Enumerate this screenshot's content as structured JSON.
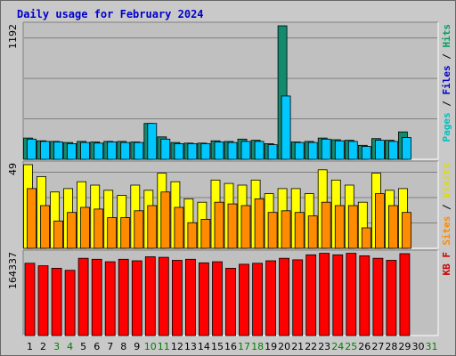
{
  "chart_data": {
    "type": "bar",
    "title": "Daily usage for February 2024",
    "categories": [
      "1",
      "2",
      "3",
      "4",
      "5",
      "6",
      "7",
      "8",
      "9",
      "10",
      "11",
      "12",
      "13",
      "14",
      "15",
      "16",
      "17",
      "18",
      "19",
      "20",
      "21",
      "22",
      "23",
      "24",
      "25",
      "26",
      "27",
      "28",
      "29",
      "30",
      "31"
    ],
    "weekend_days": [
      "3",
      "4",
      "10",
      "11",
      "17",
      "18",
      "24",
      "25",
      "31"
    ],
    "panels": [
      {
        "id": "pages_files_hits",
        "max_label": "1192",
        "ylim": [
          0,
          1192
        ],
        "legend": [
          {
            "label": "Pages",
            "color": "#00c0c0"
          },
          {
            "label": "Files",
            "color": "#0000cc"
          },
          {
            "label": "Hits",
            "color": "#00a060"
          }
        ],
        "series": [
          {
            "name": "Hits",
            "color": "#128a6e",
            "values": [
              190,
              165,
              160,
              150,
              160,
              155,
              160,
              160,
              155,
              320,
              200,
              150,
              145,
              145,
              165,
              160,
              180,
              170,
              140,
              1192,
              155,
              160,
              190,
              175,
              170,
              125,
              185,
              170,
              245,
              null,
              null
            ]
          },
          {
            "name": "Pages",
            "color": "#00c8ff",
            "values": [
              180,
              160,
              155,
              140,
              150,
              145,
              155,
              150,
              150,
              320,
              180,
              140,
              140,
              140,
              155,
              150,
              160,
              160,
              130,
              565,
              150,
              150,
              180,
              165,
              160,
              115,
              170,
              160,
              195,
              null,
              null
            ]
          }
        ]
      },
      {
        "id": "visits_sites",
        "max_label": "49",
        "ylim": [
          0,
          49
        ],
        "legend": [
          {
            "label": "Sites",
            "color": "#ff8800"
          },
          {
            "label": "Visits",
            "color": "#dddd00"
          }
        ],
        "series": [
          {
            "name": "Visits",
            "color": "#ffff00",
            "values": [
              49,
              42,
              33,
              35,
              39,
              37,
              34,
              31,
              37,
              34,
              44,
              39,
              29,
              27,
              40,
              38,
              37,
              40,
              32,
              35,
              35,
              32,
              46,
              40,
              37,
              27,
              44,
              34,
              35,
              null,
              null
            ]
          },
          {
            "name": "Sites",
            "color": "#ff8c00",
            "values": [
              35,
              25,
              16,
              21,
              24,
              23,
              18,
              18,
              22,
              25,
              33,
              24,
              15,
              17,
              27,
              26,
              25,
              29,
              21,
              22,
              21,
              19,
              27,
              25,
              25,
              12,
              32,
              25,
              21,
              null,
              null
            ]
          }
        ]
      },
      {
        "id": "kbytes",
        "max_label": "164337",
        "ylim": [
          0,
          164337
        ],
        "legend": [
          {
            "label": "KB F",
            "color": "#cc0000"
          }
        ],
        "series": [
          {
            "name": "KB F",
            "color": "#ff0000",
            "values": [
              145000,
              140000,
              135000,
              131000,
              155000,
              153000,
              148000,
              153000,
              150000,
              158000,
              157000,
              151000,
              153000,
              146000,
              148000,
              135000,
              143000,
              145000,
              150000,
              155000,
              152000,
              162000,
              165000,
              162000,
              165000,
              160000,
              155000,
              151000,
              164337,
              null,
              null
            ]
          }
        ]
      }
    ]
  }
}
